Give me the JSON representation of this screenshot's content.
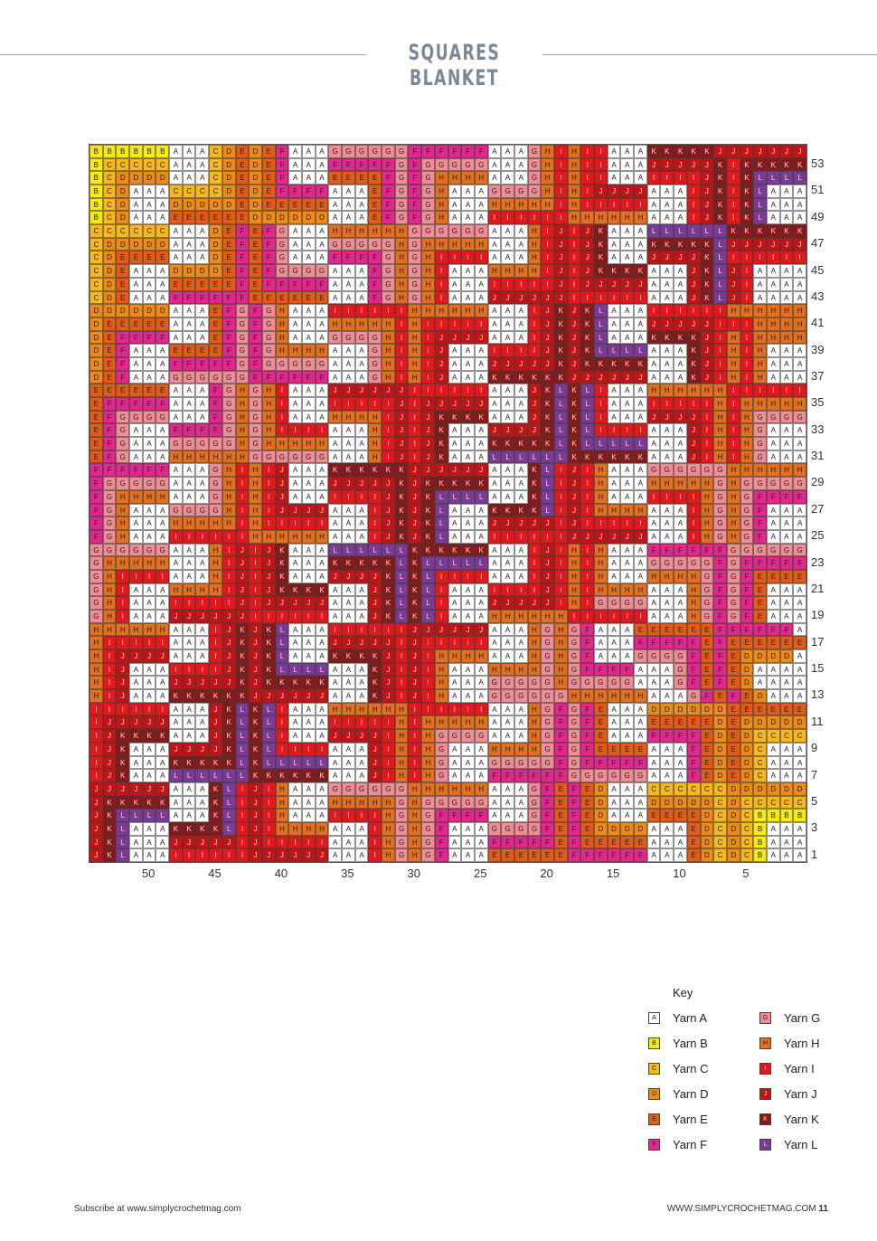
{
  "header": {
    "title": "SQUARES BLANKET"
  },
  "chart_data": {
    "type": "table",
    "row_labels": [
      "53",
      "51",
      "49",
      "47",
      "45",
      "43",
      "41",
      "39",
      "37",
      "35",
      "33",
      "31",
      "29",
      "27",
      "25",
      "23",
      "21",
      "19",
      "17",
      "15",
      "13",
      "11",
      "9",
      "7",
      "5",
      "3",
      "1"
    ],
    "col_labels": [
      "50",
      "45",
      "40",
      "35",
      "30",
      "25",
      "20",
      "15",
      "10",
      "5"
    ],
    "block_size": 9,
    "blocks": [
      [
        "B",
        "F",
        "G",
        "F",
        "H",
        "K"
      ],
      [
        "C",
        "E",
        "H",
        "I",
        "J",
        "L"
      ],
      [
        "D",
        "F",
        "I",
        "J",
        "K",
        "J"
      ],
      [
        "E",
        "G",
        "J",
        "K",
        "L",
        "H"
      ],
      [
        "F",
        "H",
        "K",
        "L",
        "I",
        "G"
      ],
      [
        "G",
        "J",
        "L",
        "I",
        "H",
        "F"
      ],
      [
        "H",
        "K",
        "I",
        "H",
        "G",
        "E"
      ],
      [
        "I",
        "L",
        "H",
        "G",
        "F",
        "D"
      ],
      [
        "J",
        "I",
        "G",
        "F",
        "E",
        "C"
      ]
    ],
    "grid_rows": [
      "BBBBBBAAACDEDEFAAAGGGGGGFFFFFFAAAGHIHIIAAAKKKKKJJJJJJJ",
      "BCCCCCAAACDEDEFAAAFFFFFGFGGGGGAAAGHIHIIAAAJJJJJKIKKKKK",
      "BCDDDDAAACDEDEFAAAEEEEFGFGHHHHAAAGHIHIIAAAIIIIJKIKLLLL",
      "BCDAAACCCCDEDEFFFFAAAEFGFGHAAAGGGGHIHIJJJJAAAIJKIKLAAA",
      "BCDAAADDDDDEDEEEEEAAAEFGFGHAAAHHHHHIHIIIIIAAAIJKIKLAAA",
      "BCDAAAEEEEEEDDDDDDAAAEFGFGHAAAIIIIIIHHHHHHAAAIJKIKLAAA",
      "CCCCCCAAADEFEFGAAAHHHHHHGGGGGGAAAHIJIJKAAALLLLLLKKKKKK",
      "CDDDDDAAADEFEFGAAAGGGGGHGHHHHHAAAHIJIJKAAAKKKKKLJJJJJJ",
      "CDEEEEAAADEFEFGAAAFFFFGHGHIIIIAAAHIJIJKAAAJJJJKLIIIIII",
      "CDEAAADDDDEFEFGGGGAAAFGHGHIAAAHHHHIJIJKKKKAAAJKLJIAAAA",
      "CDEAAAEEEEEFEFFFFFAAAFGHGHIAAAIIIIIJIJJJJJAAAJKLJIAAAA",
      "CDEAAAFFFFFFEEEEEEAAAFGHGHIAAAJJJJJJIIIIIIAAAJKLJIAAAA",
      "DDDDDDAAAEFGFGHAAAIIIIIIHHHHHHAAAIJKJKLAAAIIIIIIHHHHHH",
      "DEEEEEAAAEFGFGHAAAHHHHHIHIIIIIAAAIJKJKLAAAJJJJJIIIHHHH",
      "DEFFFFAAAEFGFGHAAAGGGGHIHIJJJJAAAIJKJKLAAAKKKKJIHIHHHH",
      "DEFAAAEEEEFGFGHHHHAAAGHIHIJAAAIIIIJKJKLLLLAAAKJIHIHAAA",
      "DEFAAAFFFFFGFGGGGGAAAGHIHIJAAAJJJJJKJKKKKKAAAKJIHIHAAA",
      "DEFAAAGGGGGGFFFFFFAAAGHIHIJAAAKKKKKKJJJJJJAAAKJIHIHAAA",
      "EEEEEEAAAFGHGHIAAAJJJJJJIIIIIIAAAJKLKLIAAAHHHHHHIIIIII",
      "EFFFFFAAAFGHGHIAAAIIIIIJIJJJJJAAAJKLKLIAAAIIIIIHIHHHHH",
      "EFGGGGAAAFGHGHIAAAHHHHIJIJKKKKAAAJKLKLIAAAJJJJIHIHGGGG",
      "EFGAAAFFFFGHGHIIIIAAAHIJIJKAAAJJJJKLKLIIIIAAAJIHIHGAAA",
      "EFGAAAGGGGGHGHHHHHAAAHIJIJKAAAKKKKKLKLLLLLAAAJIHIHGAAA",
      "EFGAAAHHHHHHGGGGGGAAAHIJIJKAAALLLLLLKKKKKKAAAJIHIHGAAA",
      "FFFFFFAAAGHIHIJAAAKKKKKKJJJJJJAAAKLIJIHAAAGGGGGGHHHHHH",
      "FGGGGGAAAGHIHIJAAAJJJJJKJKKKKKAAAKLIJIHAAAHHHHHGHGGGGG",
      "FGHHHHAAAGHIHIJAAAIIIIJKJKLLLLAAAKLIJIHAAAIIIIHGHGFFFF",
      "FGHAAAGGGGHIHIJJJJAAAIJKJKLAAAKKKKLIJIHHHHAAAIHGHGFAAA",
      "FGHAAAHHHHHIHIIIIIAAAIJKJKLAAAJJJJJIJIIIIIAAAIHGHGFAAA",
      "FGHAAAIIIIIIHHHHHHAAAIJKJKLAAAIIIIIIJJJJJJAAAIHGHGFAAA",
      "GGGGGGAAAHIJIJKAAALLLLLLKKKKKKAAAIJIHIHAAAFFFFFFGGGGGG",
      "GHHHHHAAAHIJIJKAAAKKKKKLKLLLLLAAAIJIHIHAAAGGGGGFGFFFFF",
      "GHIIIIAAAHIJIJKAAAJJJJKLKLIIIIAAAIJIHIHAAAHHHHGFGFEEEE",
      "GHIAAAHHHHIJIJKKKKAAAJKLKLIAAAIIIIJIHIHHHHAAAHGFGFEAAA",
      "GHIAAAIIIIIJIJJJJJAAAJKLKLIAAAJJJJJIHIGGGGAAAHGFGFEAAA",
      "GHIAAAJJJJJJIIIIIIAAAJKLKLIAAAHHHHHHIIIIIIAAAHGFGFEAAA",
      "HHHHHHAAAIJKJKLAAAIIIIIIJJJJJJAAAHGHGFAAAEEEEEEFFFFFF",
      "HIIIIIAAAIJKJKLAAAJJJJJIJIIIIIAAAHGHGFAAAFFFFFEFEEEEEE",
      "HIJJJJAAAIJKJKLAAAKKKKJIJIHHHHAAAHGHGFAAAGGGGFEFEDDDD",
      "HIJAAAIIIIJKJKLLLLAAAKJIJIHAAAHHHHGHGFFFFAAAGFEFEDAAA",
      "HIJAAAJJJJJKJKKKKKAAAKJIJIHAAAGGGGGHGGGGGAAAGFEFEDAAA",
      "HIJAAAKKKKKKJJJJJJAAAKJIJIHAAAGGGGGGHHHHHHAAAGFEFEDAAA",
      "IIIIIIAAAJKLKLIAAAHHHHHHIIIIIIAAAHGFGFEAAADDDDDDEEEEEE",
      "IJJJJJAAAJKLKLIAAAIIIIIHIHHHHHAAAHGFGFEAAAEEEEEDEDDDDD",
      "IJKKKKAAAJKLKLIAAAJJJJIHIHGGGGAAAHGFGFEAAAFFFFEDEDCCCC",
      "IJKAAAJJJJKLKLIIIIAAAJIHIHGAAAHHHHGFGFEEEEAAAFEDEDCAAA",
      "IJKAAAKKKKKLKLLLLLAAAJIHIHGAAAGGGGGFGFFFFFAAAFEDEDCAAA",
      "IJKAAALLLLLLKKKKKKAAAJIHIHGAAAFFFFFFGGGGGGAAAFEDEDCAAA",
      "JJJJJJAAAKLIJIHAAAGGGGGGHHHHHHAAAGFEFEDAAACCCCCCDDDDDD",
      "JKKKKKAAAKLIJIHAAAHHHHHGHGGGGGAAAGFEFEDAAADDDDDCDCCCCC",
      "JKLLLLAAAKLIJIHAAAIIIIHGHGFFFFAAAGFEFEDAAAEEEEDCDCBBBB",
      "JKLAAAKKKKLIJIHHHHAAAIHGHGFAAAGGGGFEFEDDDDAAAEDCDCBAAA",
      "JKLAAAJJJJJIJIIIIIAAAIHGHGFAAAFFFFFEFEEEEEAAAEDCDCBAAA",
      "JKLAAAIIIIIIJJJJJJAAAIHGHGFAAAEEEEEEFFFFFFAAAEDCDCBAAA"
    ],
    "colors": {
      "A": "#ffffff",
      "B": "#f7ea10",
      "C": "#f7b71e",
      "D": "#ee8a17",
      "E": "#e25c17",
      "F": "#e3278c",
      "G": "#ef8d94",
      "H": "#e3701f",
      "I": "#e3181c",
      "J": "#c11416",
      "K": "#861a1a",
      "L": "#7b3a93"
    }
  },
  "key": {
    "title": "Key",
    "items": [
      {
        "code": "A",
        "label": "Yarn A"
      },
      {
        "code": "B",
        "label": "Yarn B"
      },
      {
        "code": "C",
        "label": "Yarn C"
      },
      {
        "code": "D",
        "label": "Yarn D"
      },
      {
        "code": "E",
        "label": "Yarn E"
      },
      {
        "code": "F",
        "label": "Yarn F"
      },
      {
        "code": "G",
        "label": "Yarn G"
      },
      {
        "code": "H",
        "label": "Yarn H"
      },
      {
        "code": "I",
        "label": "Yarn I"
      },
      {
        "code": "J",
        "label": "Yarn J"
      },
      {
        "code": "K",
        "label": "Yarn K"
      },
      {
        "code": "L",
        "label": "Yarn L"
      }
    ]
  },
  "footer": {
    "left": "Subscribe at www.simplycrochetmag.com",
    "right": "WWW.SIMPLYCROCHETMAG.COM",
    "page_number": "11"
  }
}
